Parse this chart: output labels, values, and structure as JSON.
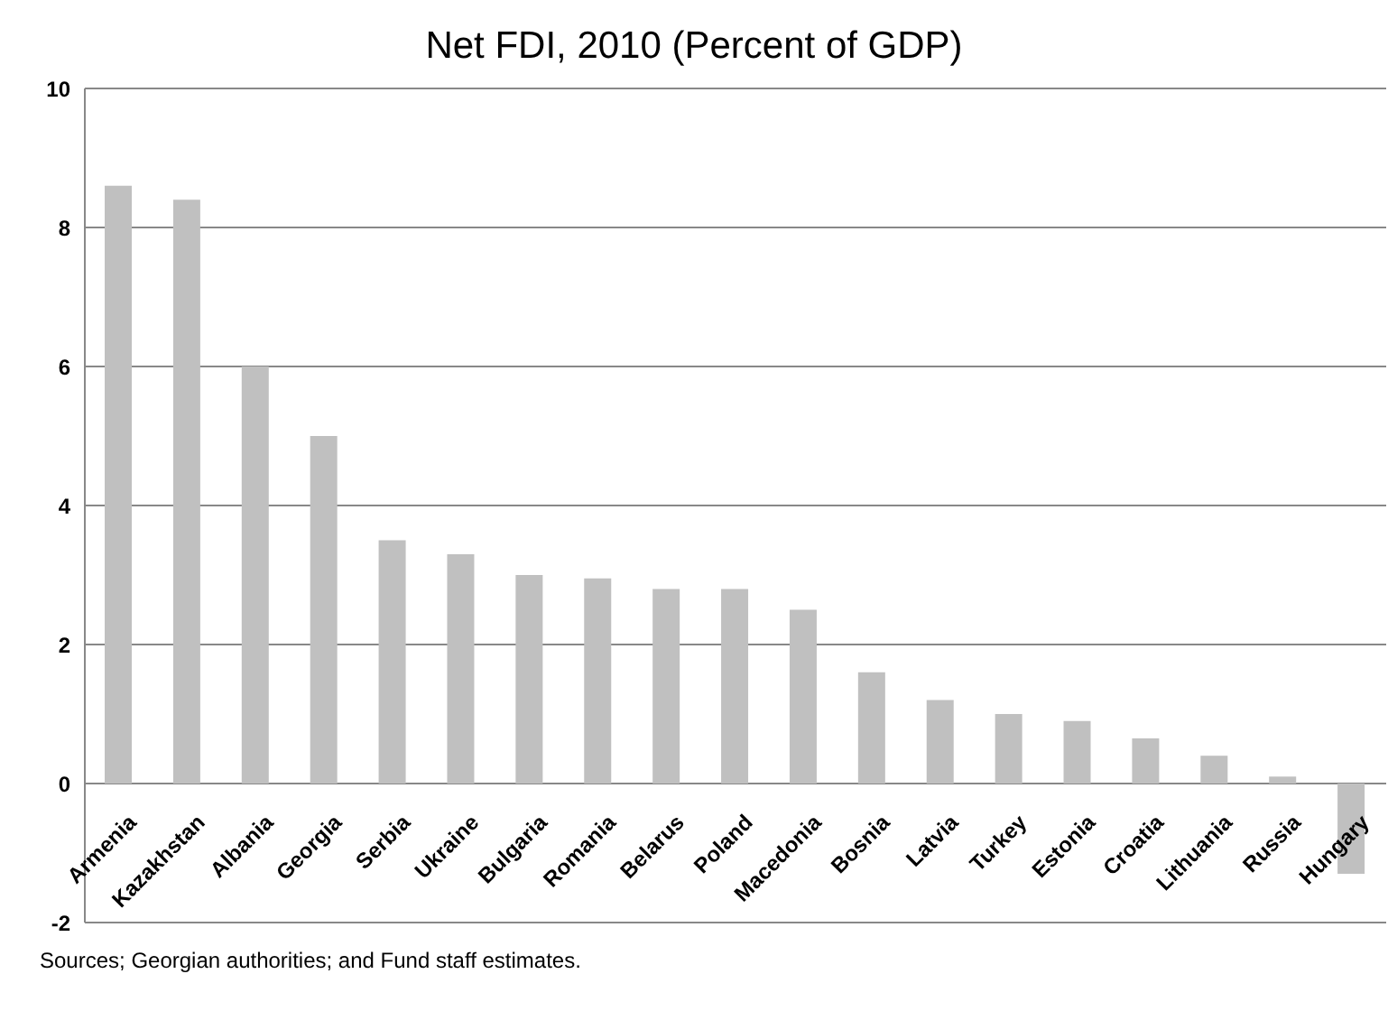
{
  "chart_data": {
    "type": "bar",
    "title": "Net FDI, 2010 (Percent of GDP)",
    "categories": [
      "Armenia",
      "Kazakhstan",
      "Albania",
      "Georgia",
      "Serbia",
      "Ukraine",
      "Bulgaria",
      "Romania",
      "Belarus",
      "Poland",
      "Macedonia",
      "Bosnia",
      "Latvia",
      "Turkey",
      "Estonia",
      "Croatia",
      "Lithuania",
      "Russia",
      "Hungary"
    ],
    "values": [
      8.6,
      8.4,
      6.0,
      5.0,
      3.5,
      3.3,
      3.0,
      2.95,
      2.8,
      2.8,
      2.5,
      1.6,
      1.2,
      1.0,
      0.9,
      0.65,
      0.4,
      0.1,
      -1.3
    ],
    "color": "#c0c0c0",
    "ylim": [
      -2,
      10
    ],
    "yticks": [
      -2,
      0,
      2,
      4,
      6,
      8,
      10
    ],
    "grid": "y",
    "annotations": [
      "Sources; Georgian authorities; and Fund staff estimates."
    ]
  }
}
